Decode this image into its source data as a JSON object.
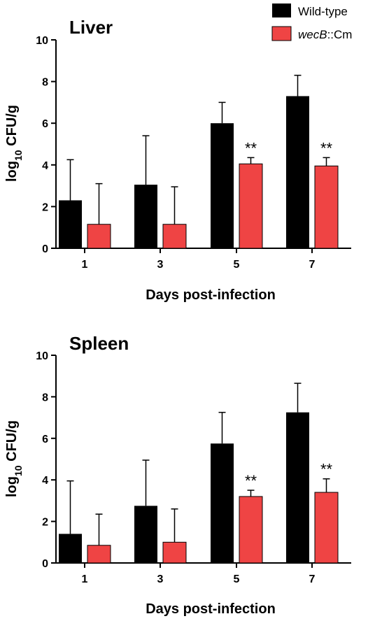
{
  "legend": {
    "items": [
      {
        "label_plain": "Wild-type",
        "color": "#000000"
      },
      {
        "label_italic": "wecB",
        "label_plain": "::Cm",
        "color": "#ef4444"
      }
    ]
  },
  "chart_data": [
    {
      "type": "bar",
      "title": "Liver",
      "xlabel": "Days post-infection",
      "ylabel_parts": [
        "log",
        "10",
        " CFU/g"
      ],
      "ylim": [
        0,
        10
      ],
      "yticks": [
        0,
        2,
        4,
        6,
        8,
        10
      ],
      "categories": [
        "1",
        "3",
        "5",
        "7"
      ],
      "series": [
        {
          "name": "Wild-type",
          "color": "#000000",
          "values": [
            2.3,
            3.05,
            6.0,
            7.3
          ],
          "error": [
            1.95,
            2.35,
            1.0,
            1.0
          ]
        },
        {
          "name": "wecB::Cm",
          "color": "#ef4444",
          "values": [
            1.15,
            1.15,
            4.05,
            3.95
          ],
          "error": [
            1.95,
            1.8,
            0.3,
            0.4
          ]
        }
      ],
      "annotations": [
        "",
        "",
        "**",
        "**"
      ]
    },
    {
      "type": "bar",
      "title": "Spleen",
      "xlabel": "Days post-infection",
      "ylabel_parts": [
        "log",
        "10",
        " CFU/g"
      ],
      "ylim": [
        0,
        10
      ],
      "yticks": [
        0,
        2,
        4,
        6,
        8,
        10
      ],
      "categories": [
        "1",
        "3",
        "5",
        "7"
      ],
      "series": [
        {
          "name": "Wild-type",
          "color": "#000000",
          "values": [
            1.4,
            2.75,
            5.75,
            7.25
          ],
          "error": [
            2.55,
            2.2,
            1.5,
            1.4
          ]
        },
        {
          "name": "wecB::Cm",
          "color": "#ef4444",
          "values": [
            0.85,
            1.0,
            3.2,
            3.4
          ],
          "error": [
            1.5,
            1.6,
            0.3,
            0.65
          ]
        }
      ],
      "annotations": [
        "",
        "",
        "**",
        "**"
      ]
    }
  ]
}
